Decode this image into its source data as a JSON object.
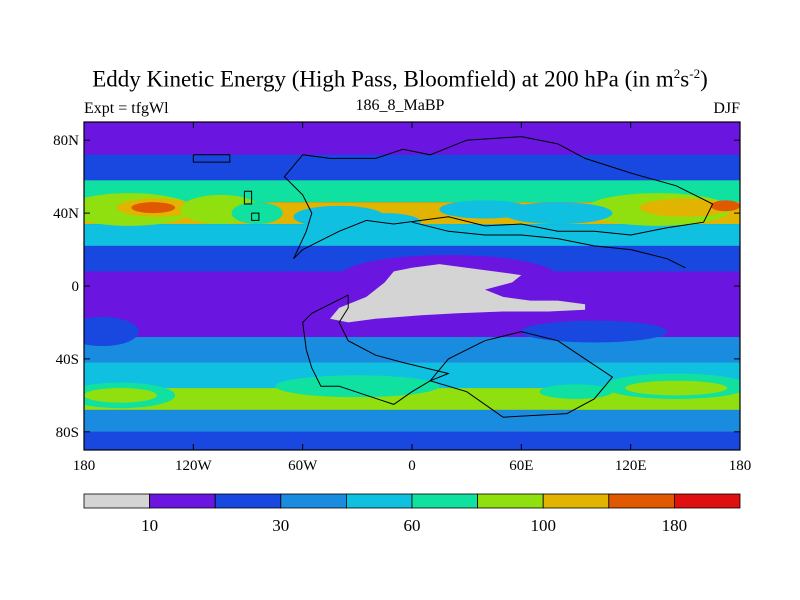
{
  "chart_data": {
    "type": "heatmap",
    "title_main": "Eddy Kinetic Energy (High Pass, Bloomfield) at 200 hPa (in m",
    "title_sup1": "2",
    "title_mid": "s",
    "title_sup2": "-2",
    "title_end": ")",
    "subtitle_left": "Expt = tfgWl",
    "subtitle_center": "186_8_MaBP",
    "subtitle_right": "DJF",
    "x_ticks": [
      "180",
      "120W",
      "60W",
      "0",
      "60E",
      "120E",
      "180"
    ],
    "x_tick_values": [
      -180,
      -120,
      -60,
      0,
      60,
      120,
      180
    ],
    "y_ticks": [
      "80N",
      "40N",
      "0",
      "40S",
      "80S"
    ],
    "y_tick_values": [
      80,
      40,
      0,
      -40,
      -80
    ],
    "xlim": [
      -180,
      180
    ],
    "ylim": [
      -90,
      90
    ],
    "levels": [
      10,
      20,
      30,
      45,
      60,
      80,
      100,
      140,
      180,
      220
    ],
    "colorbar_labels": [
      "10",
      "30",
      "60",
      "100",
      "180"
    ],
    "colorbar_label_index": [
      1,
      3,
      5,
      7,
      9
    ],
    "colors": [
      "#d4d4d4",
      "#6a16e0",
      "#1848e0",
      "#1a8ce0",
      "#10c0e0",
      "#10e0a0",
      "#90e010",
      "#e0b400",
      "#e05800",
      "#e01010"
    ],
    "bands": [
      {
        "lat": 80,
        "level": 1
      },
      {
        "lat": 65,
        "level": 2
      },
      {
        "lat": 52,
        "level": 5
      },
      {
        "lat": 40,
        "level": 7
      },
      {
        "lat": 28,
        "level": 4
      },
      {
        "lat": 15,
        "level": 2
      },
      {
        "lat": 0,
        "level": 1
      },
      {
        "lat": -20,
        "level": 1
      },
      {
        "lat": -35,
        "level": 3
      },
      {
        "lat": -50,
        "level": 4
      },
      {
        "lat": -62,
        "level": 6
      },
      {
        "lat": -75,
        "level": 3
      },
      {
        "lat": -85,
        "level": 2
      }
    ]
  }
}
